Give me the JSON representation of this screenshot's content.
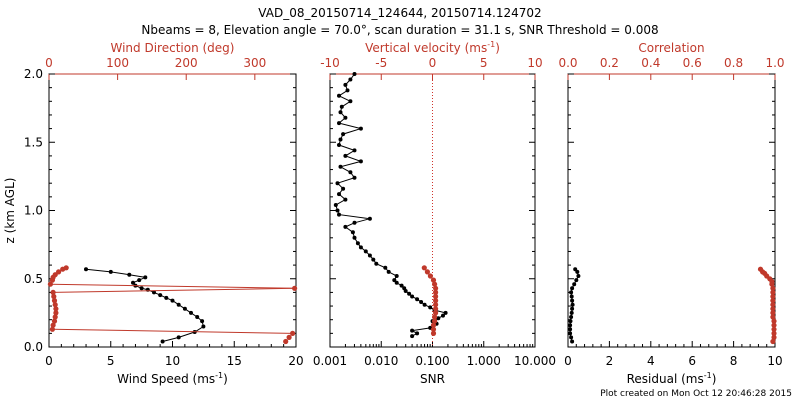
{
  "title_line1": "VAD_08_20150714_124644, 20150714.124702",
  "title_line2": "Nbeams = 8, Elevation angle = 70.0°, scan duration = 31.1 s, SNR Threshold = 0.008",
  "footer": "Plot created on Mon Oct 12 20:46:28 2015",
  "colors": {
    "black": "#000000",
    "red": "#c0392b",
    "dotted": "#d0342c"
  },
  "chart_data": [
    {
      "type": "line",
      "panel": "wind",
      "xlabel_bottom": "Wind Speed (ms",
      "xlabel_bottom_sup": "-1",
      "xlabel_bottom_end": ")",
      "xlabel_top": "Wind Direction (deg)",
      "ylabel": "z (km AGL)",
      "xlim": [
        0,
        20
      ],
      "xlim_top": [
        0,
        360
      ],
      "ylim": [
        0,
        2
      ],
      "x_ticks": [
        "0",
        "5",
        "10",
        "15",
        "20"
      ],
      "x_ticks_top": [
        "0",
        "100",
        "200",
        "300"
      ],
      "y_ticks": [
        "0.0",
        "0.5",
        "1.0",
        "1.5",
        "2.0"
      ],
      "series": [
        {
          "variable": "wind_speed",
          "points": [
            [
              9.2,
              0.04
            ],
            [
              10.5,
              0.07
            ],
            [
              11.8,
              0.11
            ],
            [
              12.5,
              0.15
            ],
            [
              12.4,
              0.19
            ],
            [
              12.0,
              0.22
            ],
            [
              11.5,
              0.25
            ],
            [
              11.0,
              0.28
            ],
            [
              10.5,
              0.31
            ],
            [
              10.0,
              0.34
            ],
            [
              9.5,
              0.36
            ],
            [
              9.0,
              0.38
            ],
            [
              8.5,
              0.4
            ],
            [
              8.0,
              0.42
            ],
            [
              7.5,
              0.43
            ],
            [
              7.0,
              0.45
            ],
            [
              6.8,
              0.47
            ],
            [
              7.3,
              0.49
            ],
            [
              7.8,
              0.51
            ],
            [
              6.5,
              0.53
            ],
            [
              5.0,
              0.55
            ],
            [
              3.0,
              0.57
            ]
          ]
        },
        {
          "variable": "wind_direction",
          "points": [
            [
              345,
              0.04
            ],
            [
              350,
              0.07
            ],
            [
              355,
              0.1
            ],
            [
              5,
              0.13
            ],
            [
              6,
              0.16
            ],
            [
              8,
              0.19
            ],
            [
              9,
              0.22
            ],
            [
              10,
              0.25
            ],
            [
              10,
              0.28
            ],
            [
              9,
              0.31
            ],
            [
              8,
              0.34
            ],
            [
              7,
              0.37
            ],
            [
              6,
              0.4
            ],
            [
              358,
              0.43
            ],
            [
              2,
              0.46
            ],
            [
              5,
              0.49
            ],
            [
              6,
              0.51
            ],
            [
              9,
              0.53
            ],
            [
              14,
              0.55
            ],
            [
              20,
              0.57
            ],
            [
              25,
              0.58
            ]
          ]
        }
      ]
    },
    {
      "type": "line",
      "panel": "vertical",
      "xlabel_bottom": "SNR",
      "xlabel_top": "Vertical velocity (ms",
      "xlabel_top_sup": "-1",
      "xlabel_top_end": ")",
      "xlim": [
        0.001,
        10
      ],
      "xscale": "log",
      "xlim_top": [
        -10,
        10
      ],
      "ylim": [
        0,
        2
      ],
      "x_ticks": [
        "0.001",
        "0.010",
        "0.100",
        "1.000",
        "10.000"
      ],
      "x_ticks_top": [
        "-10",
        "-5",
        "0",
        "5",
        "10"
      ],
      "series": [
        {
          "variable": "snr",
          "points": [
            [
              0.04,
              0.08
            ],
            [
              0.05,
              0.1
            ],
            [
              0.04,
              0.12
            ],
            [
              0.09,
              0.14
            ],
            [
              0.12,
              0.17
            ],
            [
              0.1,
              0.19
            ],
            [
              0.13,
              0.21
            ],
            [
              0.16,
              0.23
            ],
            [
              0.18,
              0.25
            ],
            [
              0.11,
              0.27
            ],
            [
              0.09,
              0.29
            ],
            [
              0.07,
              0.31
            ],
            [
              0.06,
              0.33
            ],
            [
              0.05,
              0.35
            ],
            [
              0.04,
              0.37
            ],
            [
              0.035,
              0.39
            ],
            [
              0.03,
              0.41
            ],
            [
              0.028,
              0.43
            ],
            [
              0.025,
              0.45
            ],
            [
              0.02,
              0.47
            ],
            [
              0.018,
              0.49
            ],
            [
              0.02,
              0.52
            ],
            [
              0.014,
              0.55
            ],
            [
              0.012,
              0.58
            ],
            [
              0.008,
              0.61
            ],
            [
              0.007,
              0.64
            ],
            [
              0.006,
              0.67
            ],
            [
              0.005,
              0.7
            ],
            [
              0.004,
              0.73
            ],
            [
              0.0035,
              0.76
            ],
            [
              0.003,
              0.8
            ],
            [
              0.0028,
              0.84
            ],
            [
              0.002,
              0.88
            ],
            [
              0.003,
              0.91
            ],
            [
              0.006,
              0.94
            ],
            [
              0.0015,
              0.97
            ],
            [
              0.0014,
              1.0
            ],
            [
              0.0013,
              1.04
            ],
            [
              0.002,
              1.08
            ],
            [
              0.0015,
              1.12
            ],
            [
              0.0018,
              1.16
            ],
            [
              0.0014,
              1.2
            ],
            [
              0.003,
              1.24
            ],
            [
              0.0025,
              1.28
            ],
            [
              0.0016,
              1.32
            ],
            [
              0.004,
              1.36
            ],
            [
              0.002,
              1.4
            ],
            [
              0.003,
              1.44
            ],
            [
              0.0015,
              1.48
            ],
            [
              0.0016,
              1.52
            ],
            [
              0.0018,
              1.56
            ],
            [
              0.004,
              1.6
            ],
            [
              0.0015,
              1.64
            ],
            [
              0.002,
              1.68
            ],
            [
              0.0016,
              1.72
            ],
            [
              0.0017,
              1.76
            ],
            [
              0.0025,
              1.8
            ],
            [
              0.0015,
              1.84
            ],
            [
              0.0022,
              1.88
            ],
            [
              0.002,
              1.92
            ],
            [
              0.0025,
              1.96
            ],
            [
              0.003,
              2.0
            ]
          ]
        },
        {
          "variable": "vertical_velocity",
          "points": [
            [
              -0.8,
              0.58
            ],
            [
              -0.5,
              0.55
            ],
            [
              -0.2,
              0.52
            ],
            [
              0.1,
              0.49
            ],
            [
              0.2,
              0.46
            ],
            [
              0.3,
              0.43
            ],
            [
              0.3,
              0.4
            ],
            [
              0.3,
              0.37
            ],
            [
              0.3,
              0.34
            ],
            [
              0.3,
              0.31
            ],
            [
              0.3,
              0.28
            ],
            [
              0.3,
              0.25
            ],
            [
              0.2,
              0.22
            ],
            [
              0.2,
              0.19
            ],
            [
              0.1,
              0.16
            ],
            [
              0.1,
              0.13
            ],
            [
              0.1,
              0.1
            ]
          ]
        }
      ],
      "reference_line": {
        "axis": "top_x",
        "value": 0
      }
    },
    {
      "type": "line",
      "panel": "residual",
      "xlabel_bottom": "Residual (ms",
      "xlabel_bottom_sup": "-1",
      "xlabel_bottom_end": ")",
      "xlabel_top": "Correlation",
      "xlim": [
        0,
        10
      ],
      "xlim_top": [
        0,
        1
      ],
      "ylim": [
        0,
        2
      ],
      "x_ticks": [
        "0",
        "2",
        "4",
        "6",
        "8",
        "10"
      ],
      "x_ticks_top": [
        "0.0",
        "0.2",
        "0.4",
        "0.6",
        "0.8",
        "1.0"
      ],
      "series": [
        {
          "variable": "residual",
          "points": [
            [
              0.2,
              0.04
            ],
            [
              0.15,
              0.07
            ],
            [
              0.1,
              0.1
            ],
            [
              0.1,
              0.13
            ],
            [
              0.1,
              0.16
            ],
            [
              0.12,
              0.19
            ],
            [
              0.15,
              0.22
            ],
            [
              0.18,
              0.25
            ],
            [
              0.2,
              0.28
            ],
            [
              0.22,
              0.31
            ],
            [
              0.2,
              0.34
            ],
            [
              0.18,
              0.37
            ],
            [
              0.15,
              0.4
            ],
            [
              0.2,
              0.43
            ],
            [
              0.3,
              0.46
            ],
            [
              0.4,
              0.49
            ],
            [
              0.5,
              0.52
            ],
            [
              0.45,
              0.55
            ],
            [
              0.35,
              0.57
            ]
          ]
        },
        {
          "variable": "correlation",
          "points": [
            [
              0.99,
              0.04
            ],
            [
              0.995,
              0.07
            ],
            [
              0.995,
              0.1
            ],
            [
              0.995,
              0.13
            ],
            [
              0.995,
              0.16
            ],
            [
              0.995,
              0.19
            ],
            [
              0.99,
              0.22
            ],
            [
              0.99,
              0.25
            ],
            [
              0.99,
              0.28
            ],
            [
              0.99,
              0.31
            ],
            [
              0.99,
              0.34
            ],
            [
              0.99,
              0.37
            ],
            [
              0.99,
              0.4
            ],
            [
              0.99,
              0.43
            ],
            [
              0.985,
              0.46
            ],
            [
              0.985,
              0.48
            ],
            [
              0.975,
              0.5
            ],
            [
              0.96,
              0.52
            ],
            [
              0.95,
              0.54
            ],
            [
              0.94,
              0.55
            ],
            [
              0.93,
              0.57
            ]
          ]
        }
      ]
    }
  ]
}
